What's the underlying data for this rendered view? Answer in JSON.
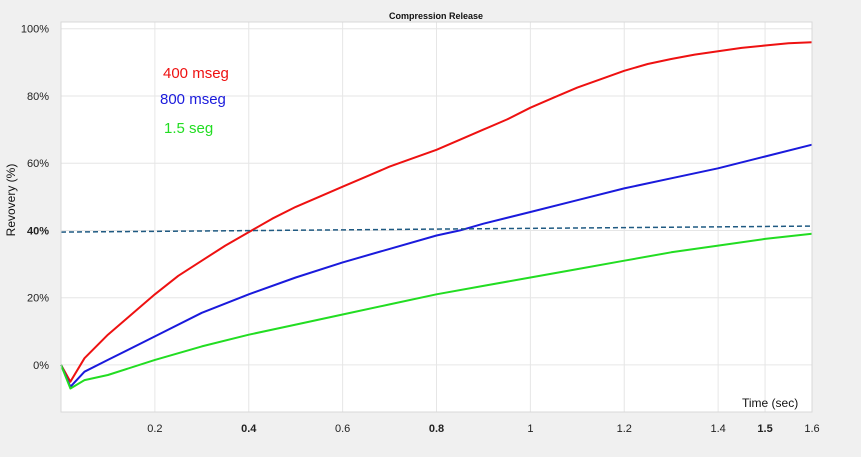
{
  "chart_data": {
    "type": "line",
    "title": "Compression Release",
    "xlabel": "Time (sec)",
    "ylabel": "Revovery (%)",
    "xlim": [
      0,
      1.6
    ],
    "ylim": [
      -14,
      102
    ],
    "grid": true,
    "x_ticks": [
      {
        "value": 0.2,
        "label": "0.2",
        "bold": false
      },
      {
        "value": 0.4,
        "label": "0.4",
        "bold": true
      },
      {
        "value": 0.6,
        "label": "0.6",
        "bold": false
      },
      {
        "value": 0.8,
        "label": "0.8",
        "bold": true
      },
      {
        "value": 1.0,
        "label": "1",
        "bold": false
      },
      {
        "value": 1.2,
        "label": "1.2",
        "bold": false
      },
      {
        "value": 1.4,
        "label": "1.4",
        "bold": false
      },
      {
        "value": 1.5,
        "label": "1.5",
        "bold": true
      },
      {
        "value": 1.6,
        "label": "1.6",
        "bold": false
      }
    ],
    "y_ticks": [
      {
        "value": 0,
        "label": "0%",
        "bold": false
      },
      {
        "value": 20,
        "label": "20%",
        "bold": false
      },
      {
        "value": 40,
        "label": "40%",
        "bold": true
      },
      {
        "value": 60,
        "label": "60%",
        "bold": false
      },
      {
        "value": 80,
        "label": "80%",
        "bold": false
      },
      {
        "value": 100,
        "label": "100%",
        "bold": false
      }
    ],
    "series": [
      {
        "name": "400 mseg",
        "color": "#ee1111",
        "x": [
          0,
          0.02,
          0.05,
          0.1,
          0.15,
          0.2,
          0.25,
          0.3,
          0.35,
          0.4,
          0.45,
          0.5,
          0.55,
          0.6,
          0.65,
          0.7,
          0.75,
          0.8,
          0.85,
          0.9,
          0.95,
          1.0,
          1.05,
          1.1,
          1.15,
          1.2,
          1.25,
          1.3,
          1.35,
          1.4,
          1.45,
          1.5,
          1.55,
          1.6
        ],
        "y": [
          0,
          -5,
          2,
          9,
          15,
          21,
          26.5,
          31,
          35.5,
          39.5,
          43.5,
          47,
          50,
          53,
          56,
          59,
          61.5,
          64,
          67,
          70,
          73,
          76.5,
          79.5,
          82.5,
          85,
          87.5,
          89.5,
          91,
          92.3,
          93.3,
          94.3,
          95,
          95.7,
          96
        ]
      },
      {
        "name": "800 mseg",
        "color": "#1a1adc",
        "x": [
          0,
          0.02,
          0.05,
          0.1,
          0.2,
          0.3,
          0.4,
          0.5,
          0.6,
          0.7,
          0.8,
          0.85,
          0.9,
          1.0,
          1.1,
          1.2,
          1.3,
          1.4,
          1.5,
          1.6
        ],
        "y": [
          0,
          -6.5,
          -2,
          1.5,
          8.5,
          15.5,
          21,
          26,
          30.5,
          34.5,
          38.5,
          40,
          42,
          45.5,
          49,
          52.5,
          55.5,
          58.5,
          62,
          65.5
        ]
      },
      {
        "name": "1.5 seg",
        "color": "#22dd22",
        "x": [
          0,
          0.02,
          0.05,
          0.1,
          0.2,
          0.3,
          0.4,
          0.5,
          0.6,
          0.7,
          0.8,
          0.9,
          1.0,
          1.1,
          1.2,
          1.3,
          1.4,
          1.5,
          1.6
        ],
        "y": [
          0,
          -7,
          -4.5,
          -3,
          1.5,
          5.5,
          9,
          12,
          15,
          18,
          21,
          23.5,
          26,
          28.5,
          31,
          33.5,
          35.5,
          37.5,
          39
        ]
      },
      {
        "color": "#1f5a82",
        "dashed": true,
        "x": [
          0,
          1.6
        ],
        "y": [
          39.5,
          41.3
        ]
      }
    ]
  }
}
